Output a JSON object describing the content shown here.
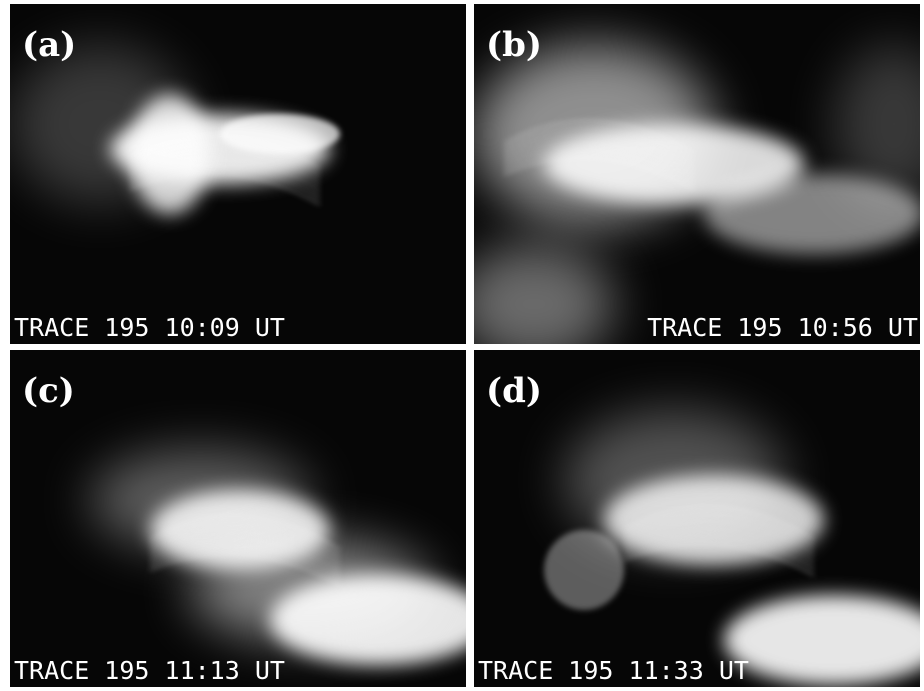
{
  "panels": [
    {
      "label": "(a)",
      "caption": "TRACE 195 10:09 UT"
    },
    {
      "label": "(b)",
      "caption": "TRACE 195 10:56 UT"
    },
    {
      "label": "(c)",
      "caption": "TRACE 195 11:13 UT"
    },
    {
      "label": "(d)",
      "caption": "TRACE 195 11:33 UT"
    }
  ]
}
